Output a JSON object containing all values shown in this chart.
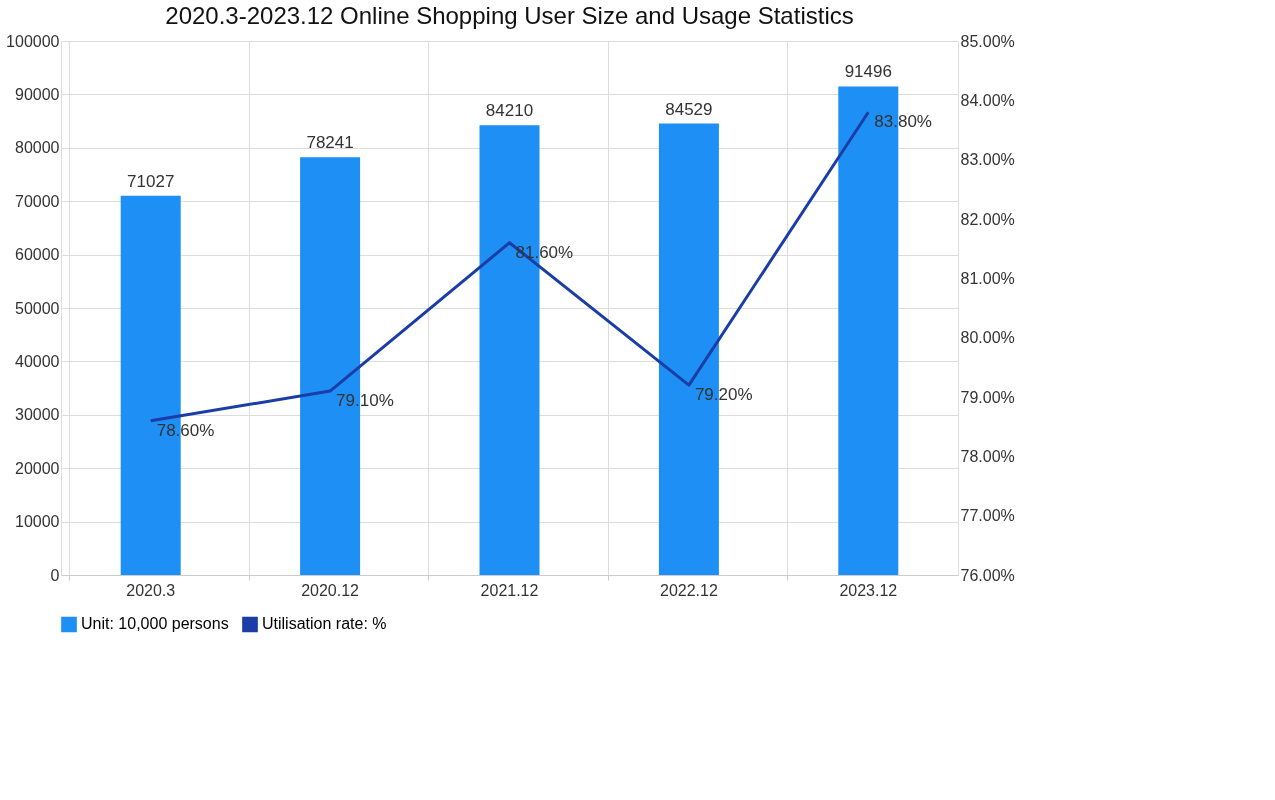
{
  "chart_data": {
    "type": "bar",
    "title": "2020.3-2023.12 Online Shopping User Size and Usage Statistics",
    "categories": [
      "2020.3",
      "2020.12",
      "2021.12",
      "2022.12",
      "2023.12"
    ],
    "series": [
      {
        "name": "Unit: 10,000 persons",
        "color": "#1e8ff5",
        "values": [
          71027,
          78241,
          84210,
          84529,
          91496
        ]
      },
      {
        "name": "Utilisation rate: %",
        "type": "line",
        "axis": "y2",
        "color": "#1a3da6",
        "values": [
          78.6,
          79.1,
          81.6,
          79.2,
          83.8
        ],
        "value_labels": [
          "78.60%",
          "79.10%",
          "81.60%",
          "79.20%",
          "83.80%"
        ]
      }
    ],
    "data_labels": true,
    "ylim": [
      0,
      100000
    ],
    "yticks": [
      0,
      10000,
      20000,
      30000,
      40000,
      50000,
      60000,
      70000,
      80000,
      90000,
      100000
    ],
    "y2lim": [
      76,
      85
    ],
    "y2ticks": [
      {
        "value": 76,
        "label": "76.00%"
      },
      {
        "value": 77,
        "label": "77.00%"
      },
      {
        "value": 78,
        "label": "78.00%"
      },
      {
        "value": 79,
        "label": "79.00%"
      },
      {
        "value": 80,
        "label": "80.00%"
      },
      {
        "value": 81,
        "label": "81.00%"
      },
      {
        "value": 82,
        "label": "82.00%"
      },
      {
        "value": 83,
        "label": "83.00%"
      },
      {
        "value": 84,
        "label": "84.00%"
      },
      {
        "value": 85,
        "label": "85.00%"
      }
    ],
    "grid": true,
    "legend": "bottom"
  }
}
